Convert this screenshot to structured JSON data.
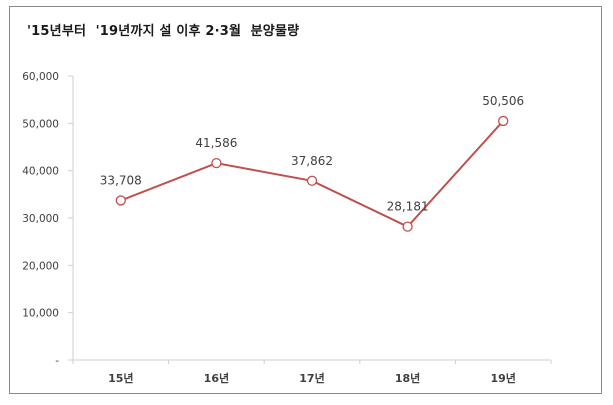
{
  "chart_data": {
    "type": "line",
    "title": "'15년부터  '19년까지 설 이후 2·3월  분양물량",
    "xlabel": "",
    "ylabel": "",
    "categories": [
      "15년",
      "16년",
      "17년",
      "18년",
      "19년"
    ],
    "series": [
      {
        "name": "분양물량",
        "values": [
          33708,
          41586,
          37862,
          28181,
          50506
        ],
        "color": "#c0504d"
      }
    ],
    "data_labels": [
      "33,708",
      "41,586",
      "37,862",
      "28,181",
      "50,506"
    ],
    "ylim": [
      0,
      60000
    ],
    "yticks": [
      0,
      10000,
      20000,
      30000,
      40000,
      50000,
      60000
    ],
    "ytick_labels": [
      "-",
      "10,000",
      "20,000",
      "30,000",
      "40,000",
      "50,000",
      "60,000"
    ],
    "grid": false,
    "legend": "none",
    "marker": "open-circle"
  }
}
